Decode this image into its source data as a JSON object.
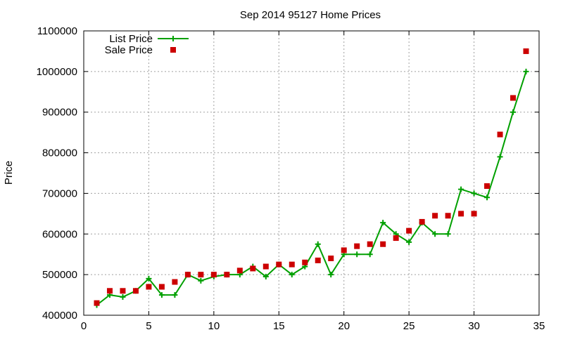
{
  "chart_data": {
    "type": "line",
    "title": "Sep 2014 95127 Home Prices",
    "xlabel": "",
    "ylabel": "Price",
    "xlim": [
      0,
      35
    ],
    "ylim": [
      400000,
      1100000
    ],
    "x_ticks": [
      "0",
      "5",
      "10",
      "15",
      "20",
      "25",
      "30",
      "35"
    ],
    "y_ticks": [
      "400000",
      "500000",
      "600000",
      "700000",
      "800000",
      "900000",
      "1000000",
      "1100000"
    ],
    "grid": true,
    "legend_position": "top-left",
    "series": [
      {
        "name": "List Price",
        "style": "line-with-plus-markers",
        "color": "#00a000",
        "points": [
          [
            1,
            425000
          ],
          [
            2,
            450000
          ],
          [
            3,
            445000
          ],
          [
            4,
            460000
          ],
          [
            5,
            490000
          ],
          [
            6,
            450000
          ],
          [
            7,
            450000
          ],
          [
            8,
            500000
          ],
          [
            9,
            485000
          ],
          [
            10,
            495000
          ],
          [
            11,
            500000
          ],
          [
            12,
            500000
          ],
          [
            13,
            520000
          ],
          [
            14,
            495000
          ],
          [
            15,
            525000
          ],
          [
            16,
            500000
          ],
          [
            17,
            520000
          ],
          [
            18,
            575000
          ],
          [
            19,
            500000
          ],
          [
            20,
            550000
          ],
          [
            21,
            550000
          ],
          [
            22,
            550000
          ],
          [
            23,
            628000
          ],
          [
            24,
            600000
          ],
          [
            25,
            580000
          ],
          [
            26,
            628000
          ],
          [
            27,
            600000
          ],
          [
            28,
            600000
          ],
          [
            29,
            710000
          ],
          [
            30,
            700000
          ],
          [
            31,
            690000
          ],
          [
            32,
            790000
          ],
          [
            33,
            900000
          ],
          [
            34,
            1000000
          ]
        ]
      },
      {
        "name": "Sale Price",
        "style": "square-markers",
        "color": "#cc0000",
        "points": [
          [
            1,
            430000
          ],
          [
            2,
            460000
          ],
          [
            3,
            460000
          ],
          [
            4,
            460000
          ],
          [
            5,
            470000
          ],
          [
            6,
            470000
          ],
          [
            7,
            482000
          ],
          [
            8,
            500000
          ],
          [
            9,
            500000
          ],
          [
            10,
            500000
          ],
          [
            11,
            500000
          ],
          [
            12,
            510000
          ],
          [
            13,
            515000
          ],
          [
            14,
            520000
          ],
          [
            15,
            525000
          ],
          [
            16,
            525000
          ],
          [
            17,
            530000
          ],
          [
            18,
            535000
          ],
          [
            19,
            540000
          ],
          [
            20,
            560000
          ],
          [
            21,
            570000
          ],
          [
            22,
            575000
          ],
          [
            23,
            575000
          ],
          [
            24,
            590000
          ],
          [
            25,
            608000
          ],
          [
            26,
            630000
          ],
          [
            27,
            645000
          ],
          [
            28,
            645000
          ],
          [
            29,
            650000
          ],
          [
            30,
            650000
          ],
          [
            31,
            718000
          ],
          [
            32,
            845000
          ],
          [
            33,
            935000
          ],
          [
            34,
            1050000
          ]
        ]
      }
    ]
  }
}
